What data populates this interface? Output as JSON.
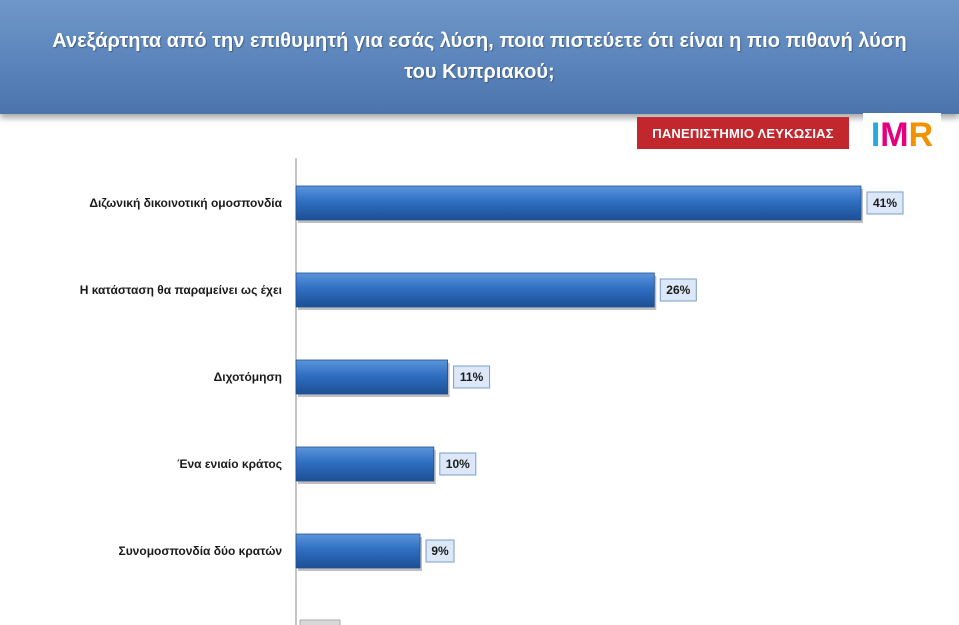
{
  "header": {
    "title": "Ανεξάρτητα από την επιθυμητή για εσάς λύση, ποια πιστεύετε ότι είναι η πιο πιθανή λύση του Κυπριακού;"
  },
  "logos": {
    "university": "ΠΑΝΕΠΙΣΤΗΜΙΟ ΛΕΥΚΩΣΙΑΣ",
    "imr": "IMR"
  },
  "colors": {
    "header_bg": "#5a84bb",
    "bar": "#2f6fc2",
    "bar_dark": "#1d4f94",
    "university_red": "#c1272d",
    "label_box": "#dce8f8"
  },
  "chart_data": {
    "type": "bar",
    "orientation": "horizontal",
    "categories": [
      "Διζωνική δικοινοτική ομοσπονδία",
      "Η κατάσταση θα παραμείνει ως έχει",
      "Διχοτόμηση",
      "Ένα ενιαίο κράτος",
      "Συνομοσπονδία δύο κρατών"
    ],
    "values": [
      41,
      26,
      11,
      10,
      9
    ],
    "value_labels": [
      "41%",
      "26%",
      "11%",
      "10%",
      "9%"
    ],
    "unit": "%",
    "xlim": [
      0,
      41
    ],
    "grid": false,
    "legend": "none"
  }
}
